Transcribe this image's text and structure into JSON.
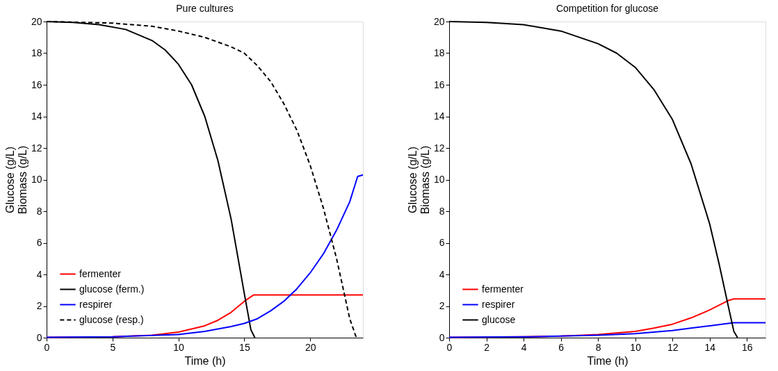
{
  "chart_data": [
    {
      "type": "line",
      "title": "Pure cultures",
      "xlabel": "Time (h)",
      "ylabel": "Glucose (g/L)\nBiomass (g/L)",
      "xlim": [
        0,
        24
      ],
      "xticks": [
        0,
        5,
        10,
        15,
        20
      ],
      "ylim": [
        0,
        20
      ],
      "yticks": [
        0,
        2,
        4,
        6,
        8,
        10,
        12,
        14,
        16,
        18,
        20
      ],
      "grid": false,
      "legend": "bottom left",
      "series": [
        {
          "name": "fermenter",
          "color": "#ff0000",
          "line_style": "solid",
          "x": [
            0,
            5,
            8,
            10,
            12,
            13,
            14,
            15,
            15.7,
            24
          ],
          "values": [
            0.02,
            0.06,
            0.15,
            0.35,
            0.75,
            1.1,
            1.6,
            2.3,
            2.7,
            2.7
          ]
        },
        {
          "name": "glucose (ferm.)",
          "color": "#000000",
          "line_style": "solid",
          "x": [
            0,
            2,
            4,
            6,
            8,
            9,
            10,
            11,
            12,
            13,
            14,
            15,
            15.5,
            15.8
          ],
          "values": [
            20,
            19.95,
            19.8,
            19.5,
            18.8,
            18.2,
            17.3,
            16,
            14,
            11.2,
            7.5,
            2.8,
            0.5,
            0
          ]
        },
        {
          "name": "respirer",
          "color": "#0000ff",
          "line_style": "solid",
          "x": [
            0,
            5,
            10,
            12,
            14,
            15,
            16,
            17,
            18,
            19,
            20,
            21,
            22,
            23,
            23.6,
            24
          ],
          "values": [
            0.02,
            0.05,
            0.2,
            0.4,
            0.7,
            0.9,
            1.2,
            1.7,
            2.3,
            3.1,
            4.1,
            5.3,
            6.8,
            8.6,
            10.2,
            10.3
          ]
        },
        {
          "name": "glucose (resp.)",
          "color": "#000000",
          "line_style": "dashed",
          "x": [
            0,
            5,
            8,
            10,
            12,
            14,
            15,
            16,
            17,
            18,
            19,
            20,
            21,
            22,
            23,
            23.5
          ],
          "values": [
            20,
            19.9,
            19.7,
            19.4,
            19,
            18.4,
            18,
            17.2,
            16.2,
            14.8,
            13.1,
            10.9,
            8.2,
            5,
            1.2,
            0
          ]
        }
      ]
    },
    {
      "type": "line",
      "title": "Competition for glucose",
      "xlabel": "Time (h)",
      "ylabel": "Glucose (g/L)\nBiomass (g/L)",
      "xlim": [
        0,
        17
      ],
      "xticks": [
        0,
        2,
        4,
        6,
        8,
        10,
        12,
        14,
        16
      ],
      "ylim": [
        0,
        20
      ],
      "yticks": [
        0,
        2,
        4,
        6,
        8,
        10,
        12,
        14,
        16,
        18,
        20
      ],
      "grid": false,
      "legend": "bottom left",
      "series": [
        {
          "name": "fermenter",
          "color": "#ff0000",
          "line_style": "solid",
          "x": [
            0,
            4,
            6,
            8,
            10,
            11,
            12,
            13,
            14,
            15,
            15.3,
            17
          ],
          "values": [
            0.02,
            0.06,
            0.1,
            0.2,
            0.4,
            0.6,
            0.85,
            1.25,
            1.75,
            2.35,
            2.45,
            2.45
          ]
        },
        {
          "name": "respirer",
          "color": "#0000ff",
          "line_style": "solid",
          "x": [
            0,
            4,
            8,
            10,
            12,
            13,
            14,
            15,
            15.3,
            17
          ],
          "values": [
            0.02,
            0.05,
            0.15,
            0.25,
            0.45,
            0.6,
            0.75,
            0.9,
            0.95,
            0.95
          ]
        },
        {
          "name": "glucose",
          "color": "#000000",
          "line_style": "solid",
          "x": [
            0,
            2,
            4,
            6,
            8,
            9,
            10,
            11,
            12,
            13,
            14,
            14.5,
            15,
            15.3,
            15.5
          ],
          "values": [
            20,
            19.95,
            19.8,
            19.4,
            18.6,
            18,
            17.1,
            15.7,
            13.8,
            11,
            7.2,
            4.7,
            2,
            0.4,
            0
          ]
        }
      ]
    }
  ]
}
